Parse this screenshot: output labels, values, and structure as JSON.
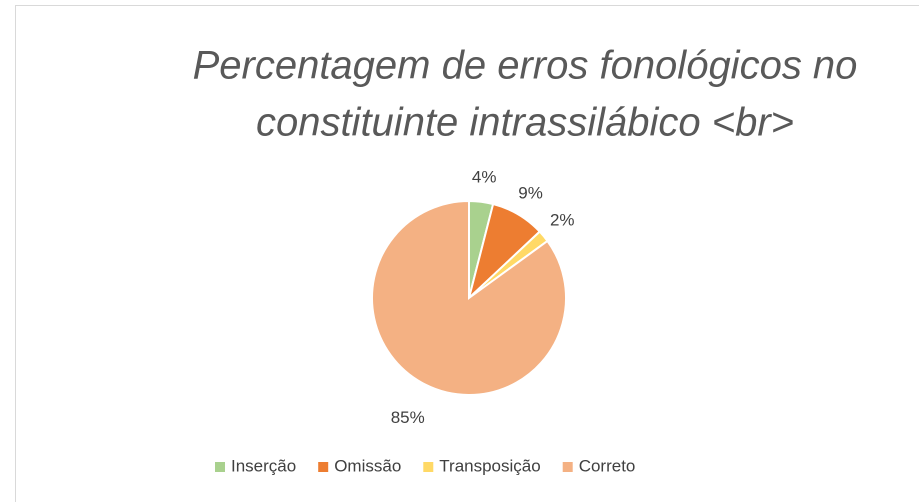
{
  "chart_data": {
    "type": "pie",
    "title": [
      "Percentagem de erros fonológicos no",
      "constituinte intrassilábico <br>"
    ],
    "categories": [
      "Inserção",
      "Omissão",
      "Transposição",
      "Correto"
    ],
    "values": [
      4,
      9,
      2,
      85
    ],
    "value_labels": [
      "4%",
      "9%",
      "2%",
      "85%"
    ],
    "colors": [
      "#a9d18e",
      "#ed7d31",
      "#ffd966",
      "#f4b183"
    ],
    "legend": "bottom"
  }
}
